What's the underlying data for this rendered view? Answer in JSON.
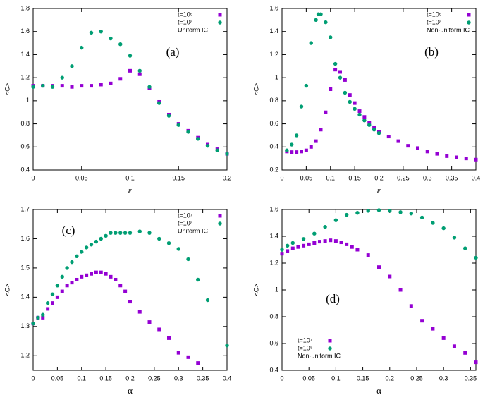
{
  "chart_data": [
    {
      "type": "scatter",
      "annotation": "(a)",
      "xlabel": "ε",
      "ylabel": "<C>",
      "legend": "upper right",
      "legend_note": "Uniform IC",
      "xlim": [
        0,
        0.2
      ],
      "xticks": [
        0,
        0.05,
        0.1,
        0.15,
        0.2
      ],
      "ylim": [
        0.4,
        1.8
      ],
      "yticks": [
        0.4,
        0.6,
        0.8,
        1,
        1.2,
        1.4,
        1.6,
        1.8
      ],
      "series": [
        {
          "name": "t=10⁶",
          "color": "#9400d3",
          "marker": "square",
          "x": [
            0,
            0.01,
            0.02,
            0.03,
            0.04,
            0.05,
            0.06,
            0.07,
            0.08,
            0.09,
            0.1,
            0.11,
            0.12,
            0.13,
            0.14,
            0.15,
            0.16,
            0.17,
            0.18,
            0.19,
            0.2
          ],
          "values": [
            1.13,
            1.13,
            1.13,
            1.13,
            1.12,
            1.13,
            1.13,
            1.14,
            1.15,
            1.19,
            1.26,
            1.23,
            1.11,
            0.99,
            0.88,
            0.8,
            0.74,
            0.68,
            0.62,
            0.58,
            0.54
          ]
        },
        {
          "name": "t=10⁸",
          "color": "#009e73",
          "marker": "circle",
          "x": [
            0,
            0.01,
            0.02,
            0.03,
            0.04,
            0.05,
            0.06,
            0.07,
            0.08,
            0.09,
            0.1,
            0.11,
            0.12,
            0.13,
            0.14,
            0.15,
            0.16,
            0.17,
            0.18,
            0.19,
            0.2
          ],
          "values": [
            1.12,
            1.13,
            1.12,
            1.2,
            1.3,
            1.46,
            1.59,
            1.6,
            1.54,
            1.49,
            1.39,
            1.26,
            1.12,
            0.98,
            0.87,
            0.79,
            0.73,
            0.67,
            0.61,
            0.57,
            0.54
          ]
        }
      ]
    },
    {
      "type": "scatter",
      "annotation": "(b)",
      "xlabel": "ε",
      "ylabel": "<C>",
      "legend": "upper right",
      "legend_note": "Non-uniform IC",
      "xlim": [
        0,
        0.4
      ],
      "xticks": [
        0,
        0.05,
        0.1,
        0.15,
        0.2,
        0.25,
        0.3,
        0.35,
        0.4
      ],
      "ylim": [
        0.2,
        1.6
      ],
      "yticks": [
        0.2,
        0.4,
        0.6,
        0.8,
        1,
        1.2,
        1.4,
        1.6
      ],
      "series": [
        {
          "name": "t=10⁶",
          "color": "#9400d3",
          "marker": "square",
          "x": [
            0.01,
            0.02,
            0.03,
            0.04,
            0.05,
            0.06,
            0.07,
            0.08,
            0.09,
            0.1,
            0.11,
            0.12,
            0.13,
            0.14,
            0.15,
            0.16,
            0.17,
            0.18,
            0.19,
            0.2,
            0.22,
            0.24,
            0.26,
            0.28,
            0.3,
            0.32,
            0.34,
            0.36,
            0.38,
            0.4
          ],
          "values": [
            0.36,
            0.355,
            0.355,
            0.36,
            0.37,
            0.4,
            0.45,
            0.55,
            0.7,
            0.9,
            1.07,
            1.05,
            0.98,
            0.85,
            0.78,
            0.71,
            0.66,
            0.61,
            0.57,
            0.53,
            0.49,
            0.45,
            0.41,
            0.39,
            0.36,
            0.34,
            0.32,
            0.31,
            0.3,
            0.29
          ]
        },
        {
          "name": "t=10⁸",
          "color": "#009e73",
          "marker": "circle",
          "x": [
            0.01,
            0.02,
            0.03,
            0.04,
            0.05,
            0.06,
            0.07,
            0.075,
            0.08,
            0.09,
            0.1,
            0.11,
            0.12,
            0.13,
            0.14,
            0.15,
            0.16,
            0.17,
            0.18,
            0.19,
            0.2
          ],
          "values": [
            0.37,
            0.42,
            0.5,
            0.75,
            0.93,
            1.3,
            1.5,
            1.55,
            1.55,
            1.48,
            1.35,
            1.12,
            1.0,
            0.87,
            0.79,
            0.73,
            0.68,
            0.63,
            0.59,
            0.55,
            0.52
          ]
        }
      ]
    },
    {
      "type": "scatter",
      "annotation": "(c)",
      "xlabel": "α",
      "ylabel": "<C>",
      "legend": "upper right",
      "legend_note": "Uniform IC",
      "xlim": [
        0,
        0.4
      ],
      "xticks": [
        0,
        0.05,
        0.1,
        0.15,
        0.2,
        0.25,
        0.3,
        0.35,
        0.4
      ],
      "ylim": [
        1.15,
        1.7
      ],
      "yticks": [
        1.2,
        1.3,
        1.4,
        1.5,
        1.6,
        1.7
      ],
      "series": [
        {
          "name": "t=10⁷",
          "color": "#9400d3",
          "marker": "square",
          "x": [
            0,
            0.01,
            0.02,
            0.03,
            0.04,
            0.05,
            0.06,
            0.07,
            0.08,
            0.09,
            0.1,
            0.11,
            0.12,
            0.13,
            0.14,
            0.15,
            0.16,
            0.17,
            0.18,
            0.19,
            0.2,
            0.22,
            0.24,
            0.26,
            0.28,
            0.3,
            0.32,
            0.34
          ],
          "values": [
            1.31,
            1.33,
            1.33,
            1.36,
            1.38,
            1.4,
            1.42,
            1.44,
            1.45,
            1.46,
            1.47,
            1.475,
            1.48,
            1.485,
            1.485,
            1.48,
            1.47,
            1.46,
            1.44,
            1.42,
            1.385,
            1.35,
            1.315,
            1.29,
            1.26,
            1.21,
            1.195,
            1.175
          ]
        },
        {
          "name": "t=10⁸",
          "color": "#009e73",
          "marker": "circle",
          "x": [
            0,
            0.01,
            0.02,
            0.03,
            0.04,
            0.05,
            0.06,
            0.07,
            0.08,
            0.09,
            0.1,
            0.11,
            0.12,
            0.13,
            0.14,
            0.15,
            0.16,
            0.17,
            0.18,
            0.19,
            0.2,
            0.22,
            0.24,
            0.26,
            0.28,
            0.3,
            0.32,
            0.34,
            0.36,
            0.4
          ],
          "values": [
            1.31,
            1.33,
            1.34,
            1.38,
            1.41,
            1.44,
            1.47,
            1.5,
            1.52,
            1.54,
            1.555,
            1.57,
            1.58,
            1.59,
            1.6,
            1.61,
            1.62,
            1.62,
            1.62,
            1.62,
            1.62,
            1.625,
            1.62,
            1.6,
            1.585,
            1.565,
            1.53,
            1.46,
            1.39,
            1.235
          ]
        }
      ]
    },
    {
      "type": "scatter",
      "annotation": "(d)",
      "xlabel": "α",
      "ylabel": "<C>",
      "legend": "lower left",
      "legend_note": "Non-uniform IC",
      "xlim": [
        0,
        0.36
      ],
      "xticks": [
        0,
        0.05,
        0.1,
        0.15,
        0.2,
        0.25,
        0.3,
        0.35
      ],
      "ylim": [
        0.4,
        1.6
      ],
      "yticks": [
        0.4,
        0.6,
        0.8,
        1,
        1.2,
        1.4,
        1.6
      ],
      "series": [
        {
          "name": "t=10⁷",
          "color": "#9400d3",
          "marker": "square",
          "x": [
            0,
            0.01,
            0.02,
            0.03,
            0.04,
            0.05,
            0.06,
            0.07,
            0.08,
            0.09,
            0.1,
            0.11,
            0.12,
            0.13,
            0.14,
            0.16,
            0.18,
            0.2,
            0.22,
            0.24,
            0.26,
            0.28,
            0.3,
            0.32,
            0.34,
            0.36
          ],
          "values": [
            1.27,
            1.29,
            1.31,
            1.32,
            1.33,
            1.34,
            1.35,
            1.36,
            1.365,
            1.37,
            1.365,
            1.355,
            1.34,
            1.32,
            1.3,
            1.26,
            1.17,
            1.1,
            1.0,
            0.88,
            0.77,
            0.71,
            0.64,
            0.58,
            0.53,
            0.46
          ]
        },
        {
          "name": "t=10⁸",
          "color": "#009e73",
          "marker": "circle",
          "x": [
            0,
            0.01,
            0.02,
            0.04,
            0.06,
            0.08,
            0.1,
            0.12,
            0.14,
            0.16,
            0.18,
            0.2,
            0.22,
            0.24,
            0.26,
            0.28,
            0.3,
            0.32,
            0.34,
            0.36
          ],
          "values": [
            1.3,
            1.33,
            1.35,
            1.38,
            1.42,
            1.47,
            1.52,
            1.56,
            1.575,
            1.59,
            1.595,
            1.59,
            1.58,
            1.57,
            1.54,
            1.5,
            1.46,
            1.39,
            1.31,
            1.24
          ]
        }
      ]
    }
  ]
}
